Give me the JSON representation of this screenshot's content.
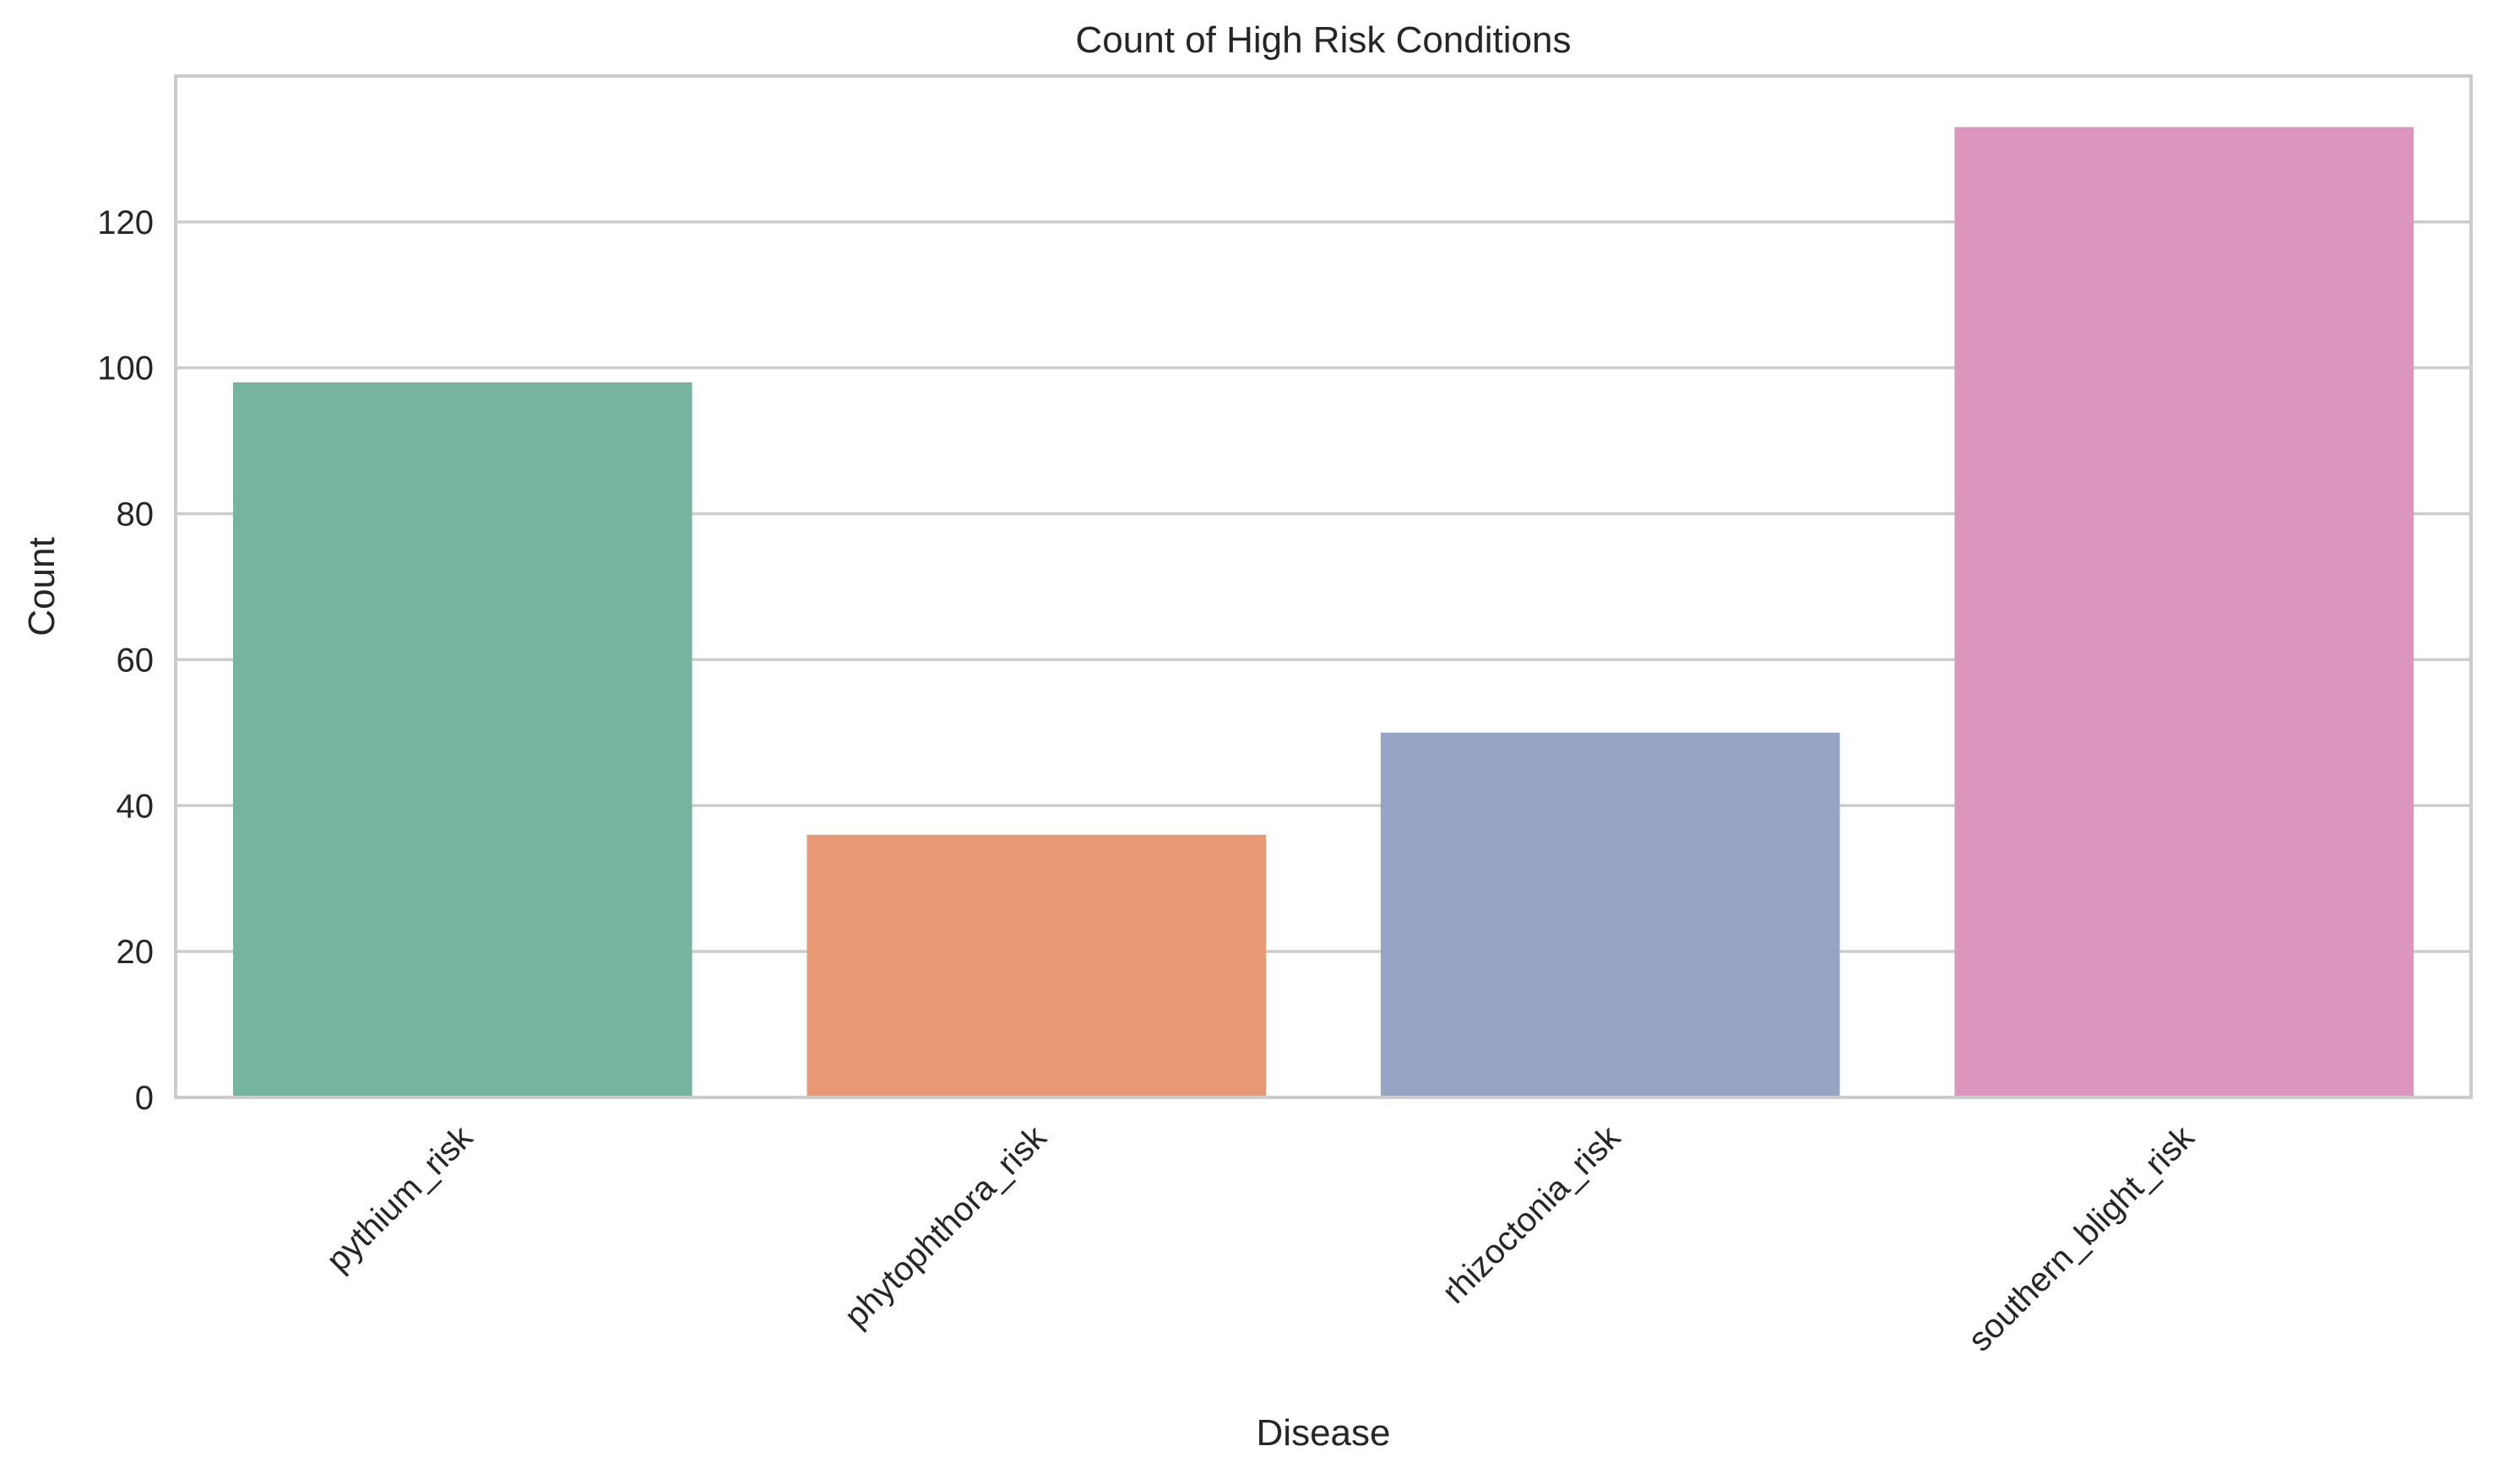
{
  "chart_data": {
    "type": "bar",
    "title": "Count of High Risk Conditions",
    "xlabel": "Disease",
    "ylabel": "Count",
    "categories": [
      "pythium_risk",
      "phytophthora_risk",
      "rhizoctonia_risk",
      "southern_blight_risk"
    ],
    "values": [
      98,
      36,
      50,
      133
    ],
    "colors": [
      "#75b5a0",
      "#e89874",
      "#96a5c3",
      "#dc95bd"
    ],
    "ylim": [
      0,
      140
    ],
    "yticks": [
      0,
      20,
      40,
      60,
      80,
      100,
      120
    ],
    "grid": true,
    "x_tick_rotation_deg": -45
  }
}
